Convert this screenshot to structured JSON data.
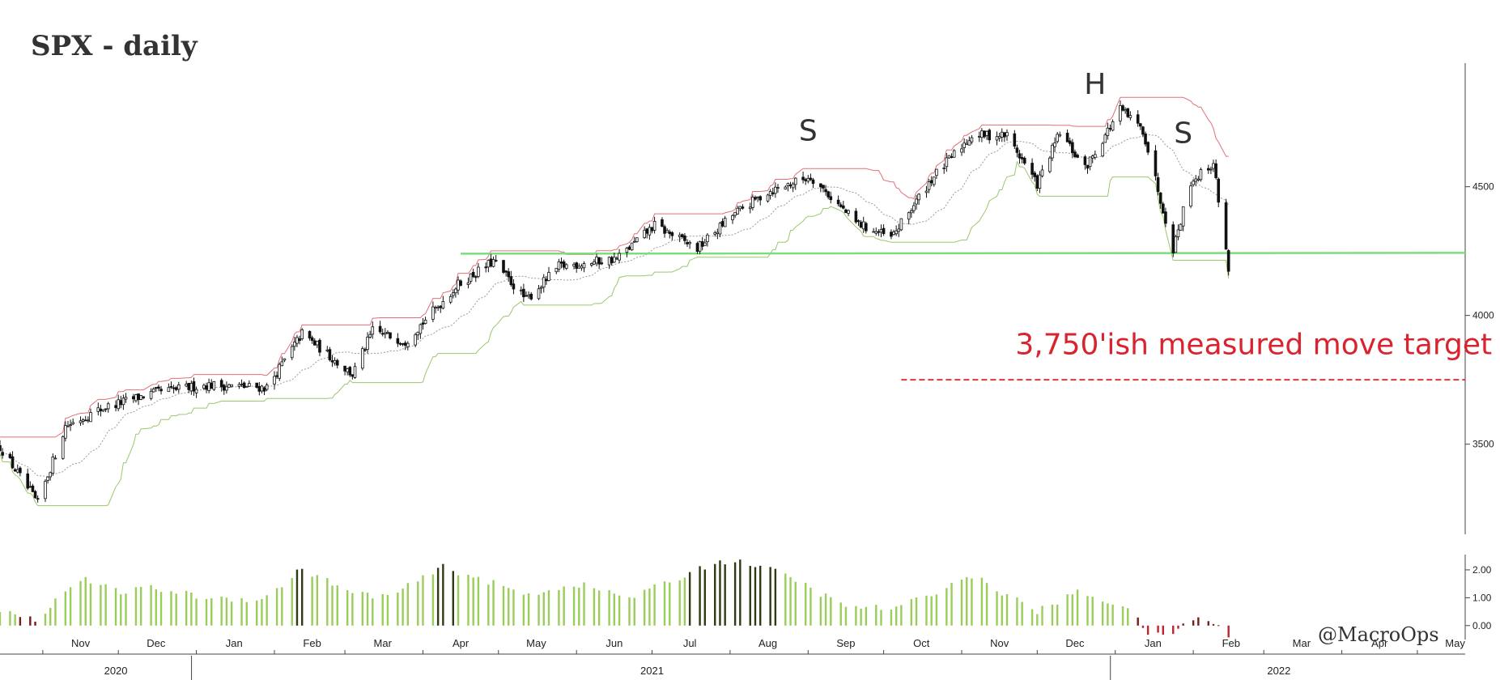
{
  "chart_data": [
    {
      "type": "candlestick",
      "title": "SPX - daily",
      "y_ticks": [
        3500,
        4000,
        4500
      ],
      "y_tick_labels": [
        "3500",
        "4000",
        "4500"
      ],
      "ylim": [
        3150,
        4980
      ],
      "x_months": [
        {
          "label": "Nov",
          "date": "2020-11-01"
        },
        {
          "label": "Dec",
          "date": "2020-12-01"
        },
        {
          "label": "Jan",
          "date": "2021-01-01"
        },
        {
          "label": "Feb",
          "date": "2021-02-01"
        },
        {
          "label": "Mar",
          "date": "2021-03-01"
        },
        {
          "label": "Apr",
          "date": "2021-04-01"
        },
        {
          "label": "May",
          "date": "2021-05-01"
        },
        {
          "label": "Jun",
          "date": "2021-06-01"
        },
        {
          "label": "Jul",
          "date": "2021-07-01"
        },
        {
          "label": "Aug",
          "date": "2021-08-01"
        },
        {
          "label": "Sep",
          "date": "2021-09-01"
        },
        {
          "label": "Oct",
          "date": "2021-10-01"
        },
        {
          "label": "Nov",
          "date": "2021-11-01"
        },
        {
          "label": "Dec",
          "date": "2021-12-01"
        },
        {
          "label": "Jan",
          "date": "2022-01-01"
        },
        {
          "label": "Feb",
          "date": "2022-02-01"
        },
        {
          "label": "Mar",
          "date": "2022-03-01"
        },
        {
          "label": "Apr",
          "date": "2022-04-01"
        },
        {
          "label": "May",
          "date": "2022-05-01"
        }
      ],
      "x_years": [
        {
          "label": "2020",
          "date": "2020-11-30"
        },
        {
          "label": "2021",
          "date": "2021-07-01"
        },
        {
          "label": "2022",
          "date": "2022-03-07"
        }
      ],
      "x_range": [
        "2020-10-15",
        "2022-05-20"
      ],
      "last_date": "2022-02-15",
      "close_path": [
        [
          "2020-10-15",
          3490
        ],
        [
          "2020-10-30",
          3270
        ],
        [
          "2020-11-10",
          3570
        ],
        [
          "2020-11-25",
          3640
        ],
        [
          "2020-12-15",
          3700
        ],
        [
          "2021-01-05",
          3730
        ],
        [
          "2021-01-29",
          3720
        ],
        [
          "2021-02-12",
          3930
        ],
        [
          "2021-03-04",
          3770
        ],
        [
          "2021-03-12",
          3940
        ],
        [
          "2021-03-25",
          3900
        ],
        [
          "2021-04-15",
          4120
        ],
        [
          "2021-04-29",
          4210
        ],
        [
          "2021-05-12",
          4060
        ],
        [
          "2021-05-25",
          4190
        ],
        [
          "2021-06-17",
          4220
        ],
        [
          "2021-07-02",
          4350
        ],
        [
          "2021-07-19",
          4260
        ],
        [
          "2021-08-02",
          4390
        ],
        [
          "2021-08-16",
          4480
        ],
        [
          "2021-09-02",
          4540
        ],
        [
          "2021-09-20",
          4360
        ],
        [
          "2021-10-04",
          4300
        ],
        [
          "2021-10-20",
          4530
        ],
        [
          "2021-11-05",
          4700
        ],
        [
          "2021-11-19",
          4700
        ],
        [
          "2021-12-01",
          4510
        ],
        [
          "2021-12-10",
          4710
        ],
        [
          "2021-12-20",
          4570
        ],
        [
          "2022-01-03",
          4800
        ],
        [
          "2022-01-12",
          4720
        ],
        [
          "2022-01-24",
          4260
        ],
        [
          "2022-01-31",
          4520
        ],
        [
          "2022-02-09",
          4590
        ],
        [
          "2022-02-15",
          4180
        ]
      ],
      "overlays": {
        "upper_band_color": "#e0707a",
        "lower_band_color": "#9ac86a",
        "moving_average_color": "#999999"
      },
      "neckline": {
        "value": 4240,
        "from": "2021-04-16",
        "to": "2022-05-20",
        "color": "#7ddc7d"
      },
      "target_line": {
        "value": 3750,
        "from": "2021-10-08",
        "to": "2022-05-20",
        "color": "#d9363e"
      },
      "annotations": [
        {
          "text": "S",
          "date": "2021-09-01",
          "value": 4680
        },
        {
          "text": "H",
          "date": "2021-12-24",
          "value": 4860
        },
        {
          "text": "S",
          "date": "2022-01-28",
          "value": 4670
        },
        {
          "text": "3,750'ish measured move target",
          "date": "2022-02-25",
          "value": 3850,
          "color": "#d9232e"
        }
      ]
    },
    {
      "type": "bar",
      "panel": "indicator",
      "y_ticks": [
        0,
        1,
        2
      ],
      "y_tick_labels": [
        "0.00",
        "1.00",
        "2.00"
      ],
      "ylim": [
        -0.5,
        2.55
      ],
      "path": [
        [
          "2020-10-15",
          0.55
        ],
        [
          "2020-10-29",
          0.2
        ],
        [
          "2020-11-06",
          0.9
        ],
        [
          "2020-11-16",
          1.7
        ],
        [
          "2020-12-01",
          1.2
        ],
        [
          "2020-12-15",
          1.35
        ],
        [
          "2021-01-05",
          1.0
        ],
        [
          "2021-01-28",
          0.95
        ],
        [
          "2021-02-12",
          2.05
        ],
        [
          "2021-03-04",
          1.15
        ],
        [
          "2021-03-19",
          1.05
        ],
        [
          "2021-04-09",
          2.1
        ],
        [
          "2021-04-23",
          1.7
        ],
        [
          "2021-05-12",
          1.1
        ],
        [
          "2021-06-01",
          1.5
        ],
        [
          "2021-06-22",
          1.0
        ],
        [
          "2021-07-09",
          1.6
        ],
        [
          "2021-07-26",
          2.3
        ],
        [
          "2021-08-09",
          2.25
        ],
        [
          "2021-08-26",
          1.7
        ],
        [
          "2021-09-15",
          0.7
        ],
        [
          "2021-10-06",
          0.6
        ],
        [
          "2021-11-05",
          1.8
        ],
        [
          "2021-12-01",
          0.5
        ],
        [
          "2021-12-17",
          1.2
        ],
        [
          "2022-01-05",
          0.7
        ],
        [
          "2022-01-14",
          -0.25
        ],
        [
          "2022-01-21",
          -0.45
        ],
        [
          "2022-01-26",
          -0.1
        ],
        [
          "2022-02-03",
          0.35
        ],
        [
          "2022-02-15",
          -0.3
        ]
      ],
      "colors": {
        "light": "#9acd5a",
        "dark": "#2d3a12",
        "negative": "#c0232b",
        "neutral": "#7a1a1a"
      }
    }
  ],
  "watermark": "@MacroOps"
}
